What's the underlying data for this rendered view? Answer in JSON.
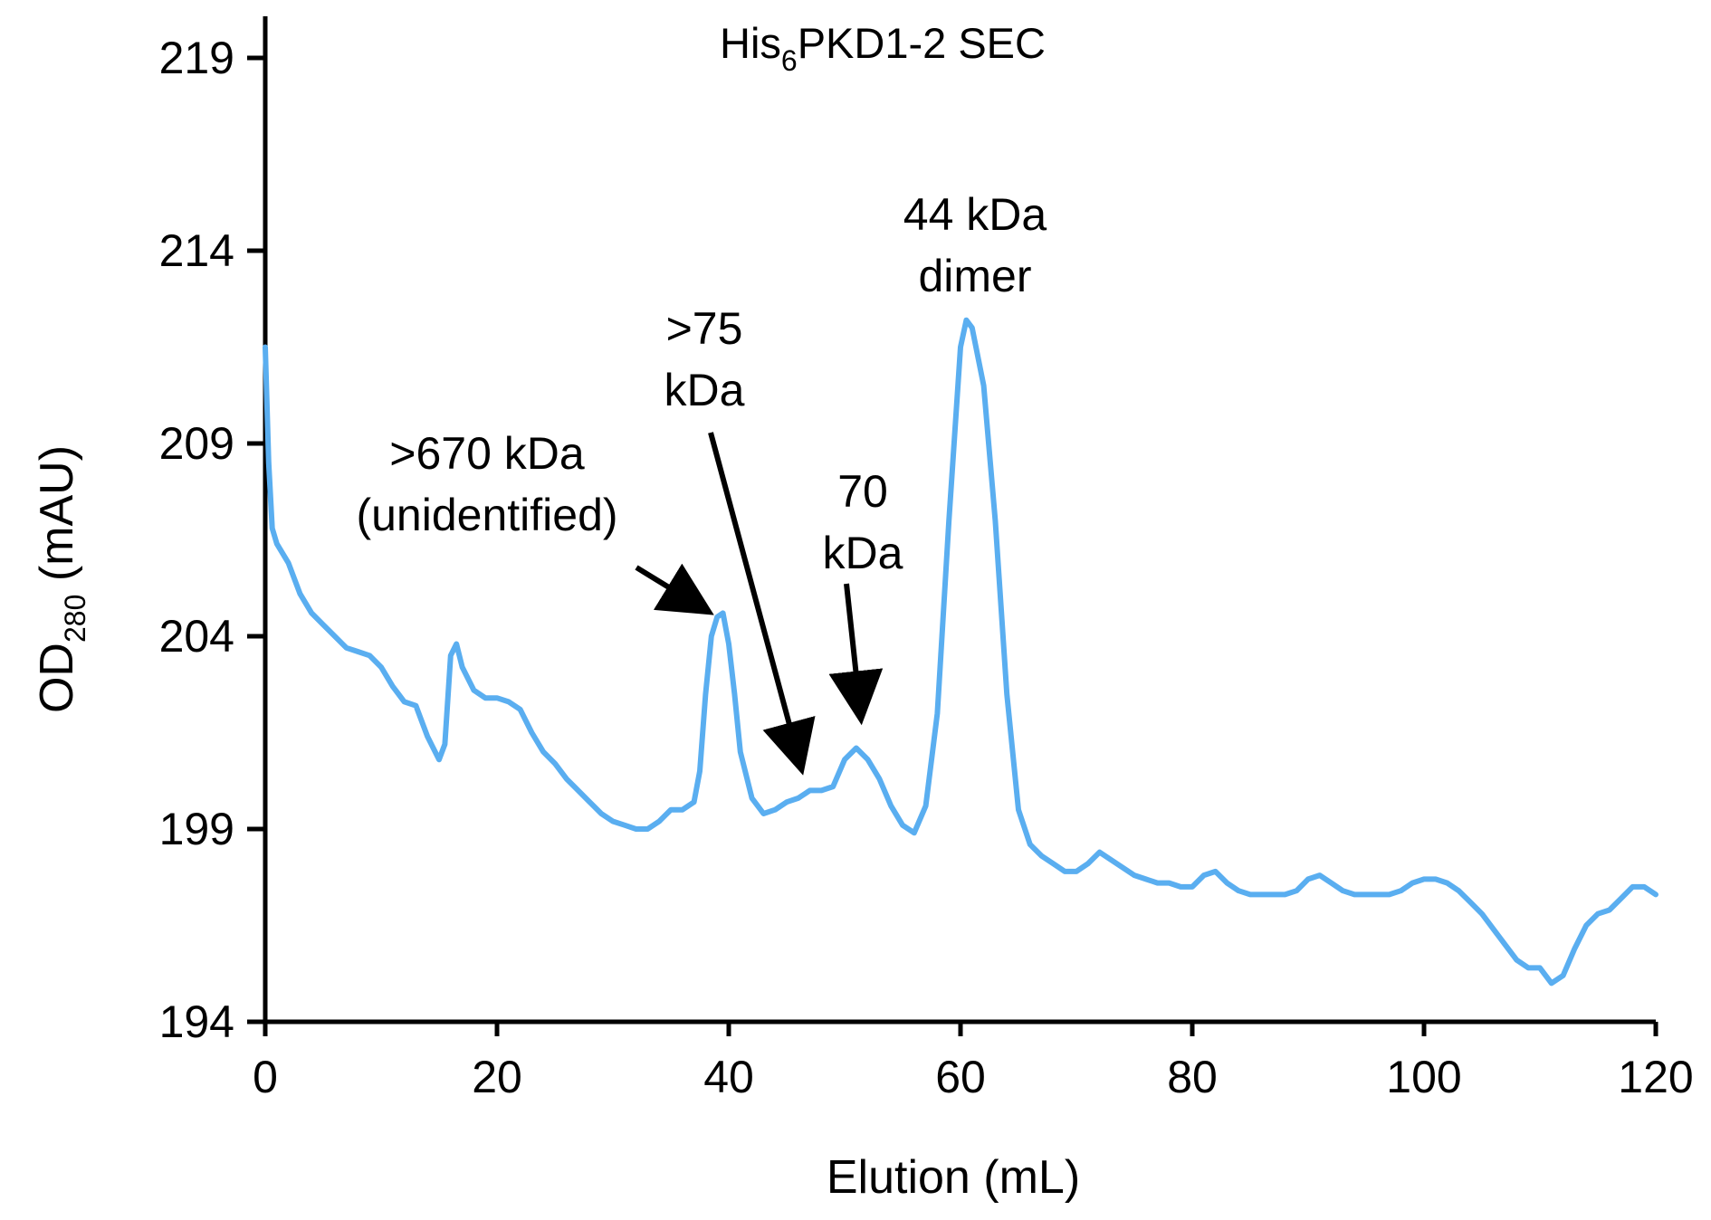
{
  "chart_data": {
    "type": "line",
    "title": {
      "main": "His",
      "sub": "6",
      "rest": "PKD1-2 SEC"
    },
    "xlabel": "Elution (mL)",
    "ylabel": {
      "main": "OD",
      "sub": "280",
      "rest": " (mAU)"
    },
    "xlim": [
      0,
      120
    ],
    "ylim": [
      194,
      220
    ],
    "x_ticks": [
      0,
      20,
      40,
      60,
      80,
      100,
      120
    ],
    "y_ticks": [
      194,
      199,
      204,
      209,
      214,
      219
    ],
    "grid": false,
    "legend": "none",
    "series": [
      {
        "color": "#5aaef0",
        "points": [
          [
            0,
            211.5
          ],
          [
            0.3,
            208.5
          ],
          [
            0.6,
            206.8
          ],
          [
            1,
            206.4
          ],
          [
            2,
            205.9
          ],
          [
            3,
            205.1
          ],
          [
            4,
            204.6
          ],
          [
            5,
            204.3
          ],
          [
            6,
            204.0
          ],
          [
            7,
            203.7
          ],
          [
            8,
            203.6
          ],
          [
            9,
            203.5
          ],
          [
            10,
            203.2
          ],
          [
            11,
            202.7
          ],
          [
            12,
            202.3
          ],
          [
            13,
            202.2
          ],
          [
            14,
            201.4
          ],
          [
            15,
            200.8
          ],
          [
            15.5,
            201.2
          ],
          [
            16,
            203.5
          ],
          [
            16.5,
            203.8
          ],
          [
            17,
            203.2
          ],
          [
            18,
            202.6
          ],
          [
            19,
            202.4
          ],
          [
            20,
            202.4
          ],
          [
            21,
            202.3
          ],
          [
            22,
            202.1
          ],
          [
            23,
            201.5
          ],
          [
            24,
            201.0
          ],
          [
            25,
            200.7
          ],
          [
            26,
            200.3
          ],
          [
            27,
            200.0
          ],
          [
            28,
            199.7
          ],
          [
            29,
            199.4
          ],
          [
            30,
            199.2
          ],
          [
            31,
            199.1
          ],
          [
            32,
            199.0
          ],
          [
            33,
            199.0
          ],
          [
            34,
            199.2
          ],
          [
            35,
            199.5
          ],
          [
            36,
            199.5
          ],
          [
            37,
            199.7
          ],
          [
            37.5,
            200.5
          ],
          [
            38,
            202.5
          ],
          [
            38.5,
            204.0
          ],
          [
            39,
            204.5
          ],
          [
            39.5,
            204.6
          ],
          [
            40,
            203.8
          ],
          [
            40.5,
            202.5
          ],
          [
            41,
            201.0
          ],
          [
            42,
            199.8
          ],
          [
            43,
            199.4
          ],
          [
            44,
            199.5
          ],
          [
            45,
            199.7
          ],
          [
            46,
            199.8
          ],
          [
            47,
            200.0
          ],
          [
            48,
            200.0
          ],
          [
            49,
            200.1
          ],
          [
            50,
            200.8
          ],
          [
            51,
            201.1
          ],
          [
            52,
            200.8
          ],
          [
            53,
            200.3
          ],
          [
            54,
            199.6
          ],
          [
            55,
            199.1
          ],
          [
            56,
            198.9
          ],
          [
            57,
            199.6
          ],
          [
            58,
            202.0
          ],
          [
            59,
            207.0
          ],
          [
            60,
            211.5
          ],
          [
            60.5,
            212.2
          ],
          [
            61,
            212.0
          ],
          [
            62,
            210.5
          ],
          [
            63,
            207.0
          ],
          [
            64,
            202.5
          ],
          [
            65,
            199.5
          ],
          [
            66,
            198.6
          ],
          [
            67,
            198.3
          ],
          [
            68,
            198.1
          ],
          [
            69,
            197.9
          ],
          [
            70,
            197.9
          ],
          [
            71,
            198.1
          ],
          [
            72,
            198.4
          ],
          [
            73,
            198.2
          ],
          [
            74,
            198.0
          ],
          [
            75,
            197.8
          ],
          [
            76,
            197.7
          ],
          [
            77,
            197.6
          ],
          [
            78,
            197.6
          ],
          [
            79,
            197.5
          ],
          [
            80,
            197.5
          ],
          [
            81,
            197.8
          ],
          [
            82,
            197.9
          ],
          [
            83,
            197.6
          ],
          [
            84,
            197.4
          ],
          [
            85,
            197.3
          ],
          [
            86,
            197.3
          ],
          [
            87,
            197.3
          ],
          [
            88,
            197.3
          ],
          [
            89,
            197.4
          ],
          [
            90,
            197.7
          ],
          [
            91,
            197.8
          ],
          [
            92,
            197.6
          ],
          [
            93,
            197.4
          ],
          [
            94,
            197.3
          ],
          [
            95,
            197.3
          ],
          [
            96,
            197.3
          ],
          [
            97,
            197.3
          ],
          [
            98,
            197.4
          ],
          [
            99,
            197.6
          ],
          [
            100,
            197.7
          ],
          [
            101,
            197.7
          ],
          [
            102,
            197.6
          ],
          [
            103,
            197.4
          ],
          [
            104,
            197.1
          ],
          [
            105,
            196.8
          ],
          [
            106,
            196.4
          ],
          [
            107,
            196.0
          ],
          [
            108,
            195.6
          ],
          [
            109,
            195.4
          ],
          [
            110,
            195.4
          ],
          [
            111,
            195.0
          ],
          [
            112,
            195.2
          ],
          [
            113,
            195.9
          ],
          [
            114,
            196.5
          ],
          [
            115,
            196.8
          ],
          [
            116,
            196.9
          ],
          [
            117,
            197.2
          ],
          [
            118,
            197.5
          ],
          [
            119,
            197.5
          ],
          [
            120,
            197.3
          ]
        ]
      }
    ],
    "annotations": [
      {
        "lines": [
          ">670 kDa",
          "(unidentified)"
        ],
        "arrow_to": [
          39,
          204.5
        ]
      },
      {
        "lines": [
          ">75",
          "kDa"
        ],
        "arrow_to": [
          46.5,
          200.3
        ]
      },
      {
        "lines": [
          "70",
          "kDa"
        ],
        "arrow_to": [
          51.5,
          201.6
        ]
      },
      {
        "lines": [
          "44 kDa",
          "dimer"
        ]
      }
    ]
  }
}
